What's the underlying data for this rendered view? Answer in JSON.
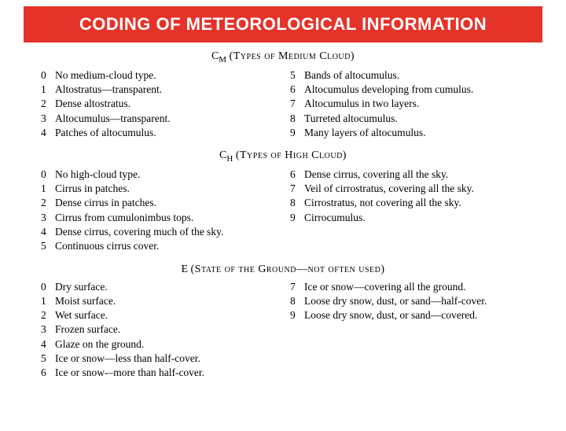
{
  "title": "CODING OF METEOROLOGICAL INFORMATION",
  "sections": [
    {
      "header_label": "C",
      "header_sub": "M",
      "header_desc": "(Types of Medium Cloud)",
      "left": [
        {
          "code": "0",
          "text": "No medium-cloud type."
        },
        {
          "code": "1",
          "text": "Altostratus—transparent."
        },
        {
          "code": "2",
          "text": "Dense altostratus."
        },
        {
          "code": "3",
          "text": "Altocumulus—transparent."
        },
        {
          "code": "4",
          "text": "Patches of altocumulus."
        }
      ],
      "right": [
        {
          "code": "5",
          "text": "Bands of altocumulus."
        },
        {
          "code": "6",
          "text": "Altocumulus developing from cumulus."
        },
        {
          "code": "7",
          "text": "Altocumulus in two layers."
        },
        {
          "code": "8",
          "text": "Turreted altocumulus."
        },
        {
          "code": "9",
          "text": "Many layers of altocumulus."
        }
      ]
    },
    {
      "header_label": "C",
      "header_sub": "H",
      "header_desc": "(Types of High Cloud)",
      "left": [
        {
          "code": "0",
          "text": "No high-cloud type."
        },
        {
          "code": "1",
          "text": "Cirrus in patches."
        },
        {
          "code": "2",
          "text": "Dense cirrus in patches."
        },
        {
          "code": "3",
          "text": "Cirrus from cumulonimbus tops."
        },
        {
          "code": "4",
          "text": "Dense cirrus, covering much of the sky."
        },
        {
          "code": "5",
          "text": "Continuous cirrus cover."
        }
      ],
      "right": [
        {
          "code": "6",
          "text": "Dense cirrus, covering all the sky."
        },
        {
          "code": "7",
          "text": "Veil of cirrostratus, covering all the sky."
        },
        {
          "code": "8",
          "text": "Cirrostratus, not covering all the sky."
        },
        {
          "code": "9",
          "text": "Cirrocumulus."
        }
      ]
    },
    {
      "header_label": "E",
      "header_sub": "",
      "header_desc": "(State of the Ground—not often used)",
      "left": [
        {
          "code": "0",
          "text": "Dry surface."
        },
        {
          "code": "1",
          "text": "Moist surface."
        },
        {
          "code": "2",
          "text": "Wet surface."
        },
        {
          "code": "3",
          "text": "Frozen surface."
        },
        {
          "code": "4",
          "text": "Glaze on the ground."
        },
        {
          "code": "5",
          "text": "Ice or snow—less than half-cover."
        },
        {
          "code": "6",
          "text": "Ice or snow-–more than half-cover."
        }
      ],
      "right": [
        {
          "code": "7",
          "text": "Ice or snow—covering all the ground."
        },
        {
          "code": "8",
          "text": "Loose dry snow, dust, or sand—half-cover."
        },
        {
          "code": "9",
          "text": "Loose dry snow, dust, or sand—covered."
        }
      ]
    }
  ],
  "colors": {
    "title_bg": "#e63329",
    "title_fg": "#ffffff",
    "text": "#000000",
    "bg": "#ffffff"
  }
}
